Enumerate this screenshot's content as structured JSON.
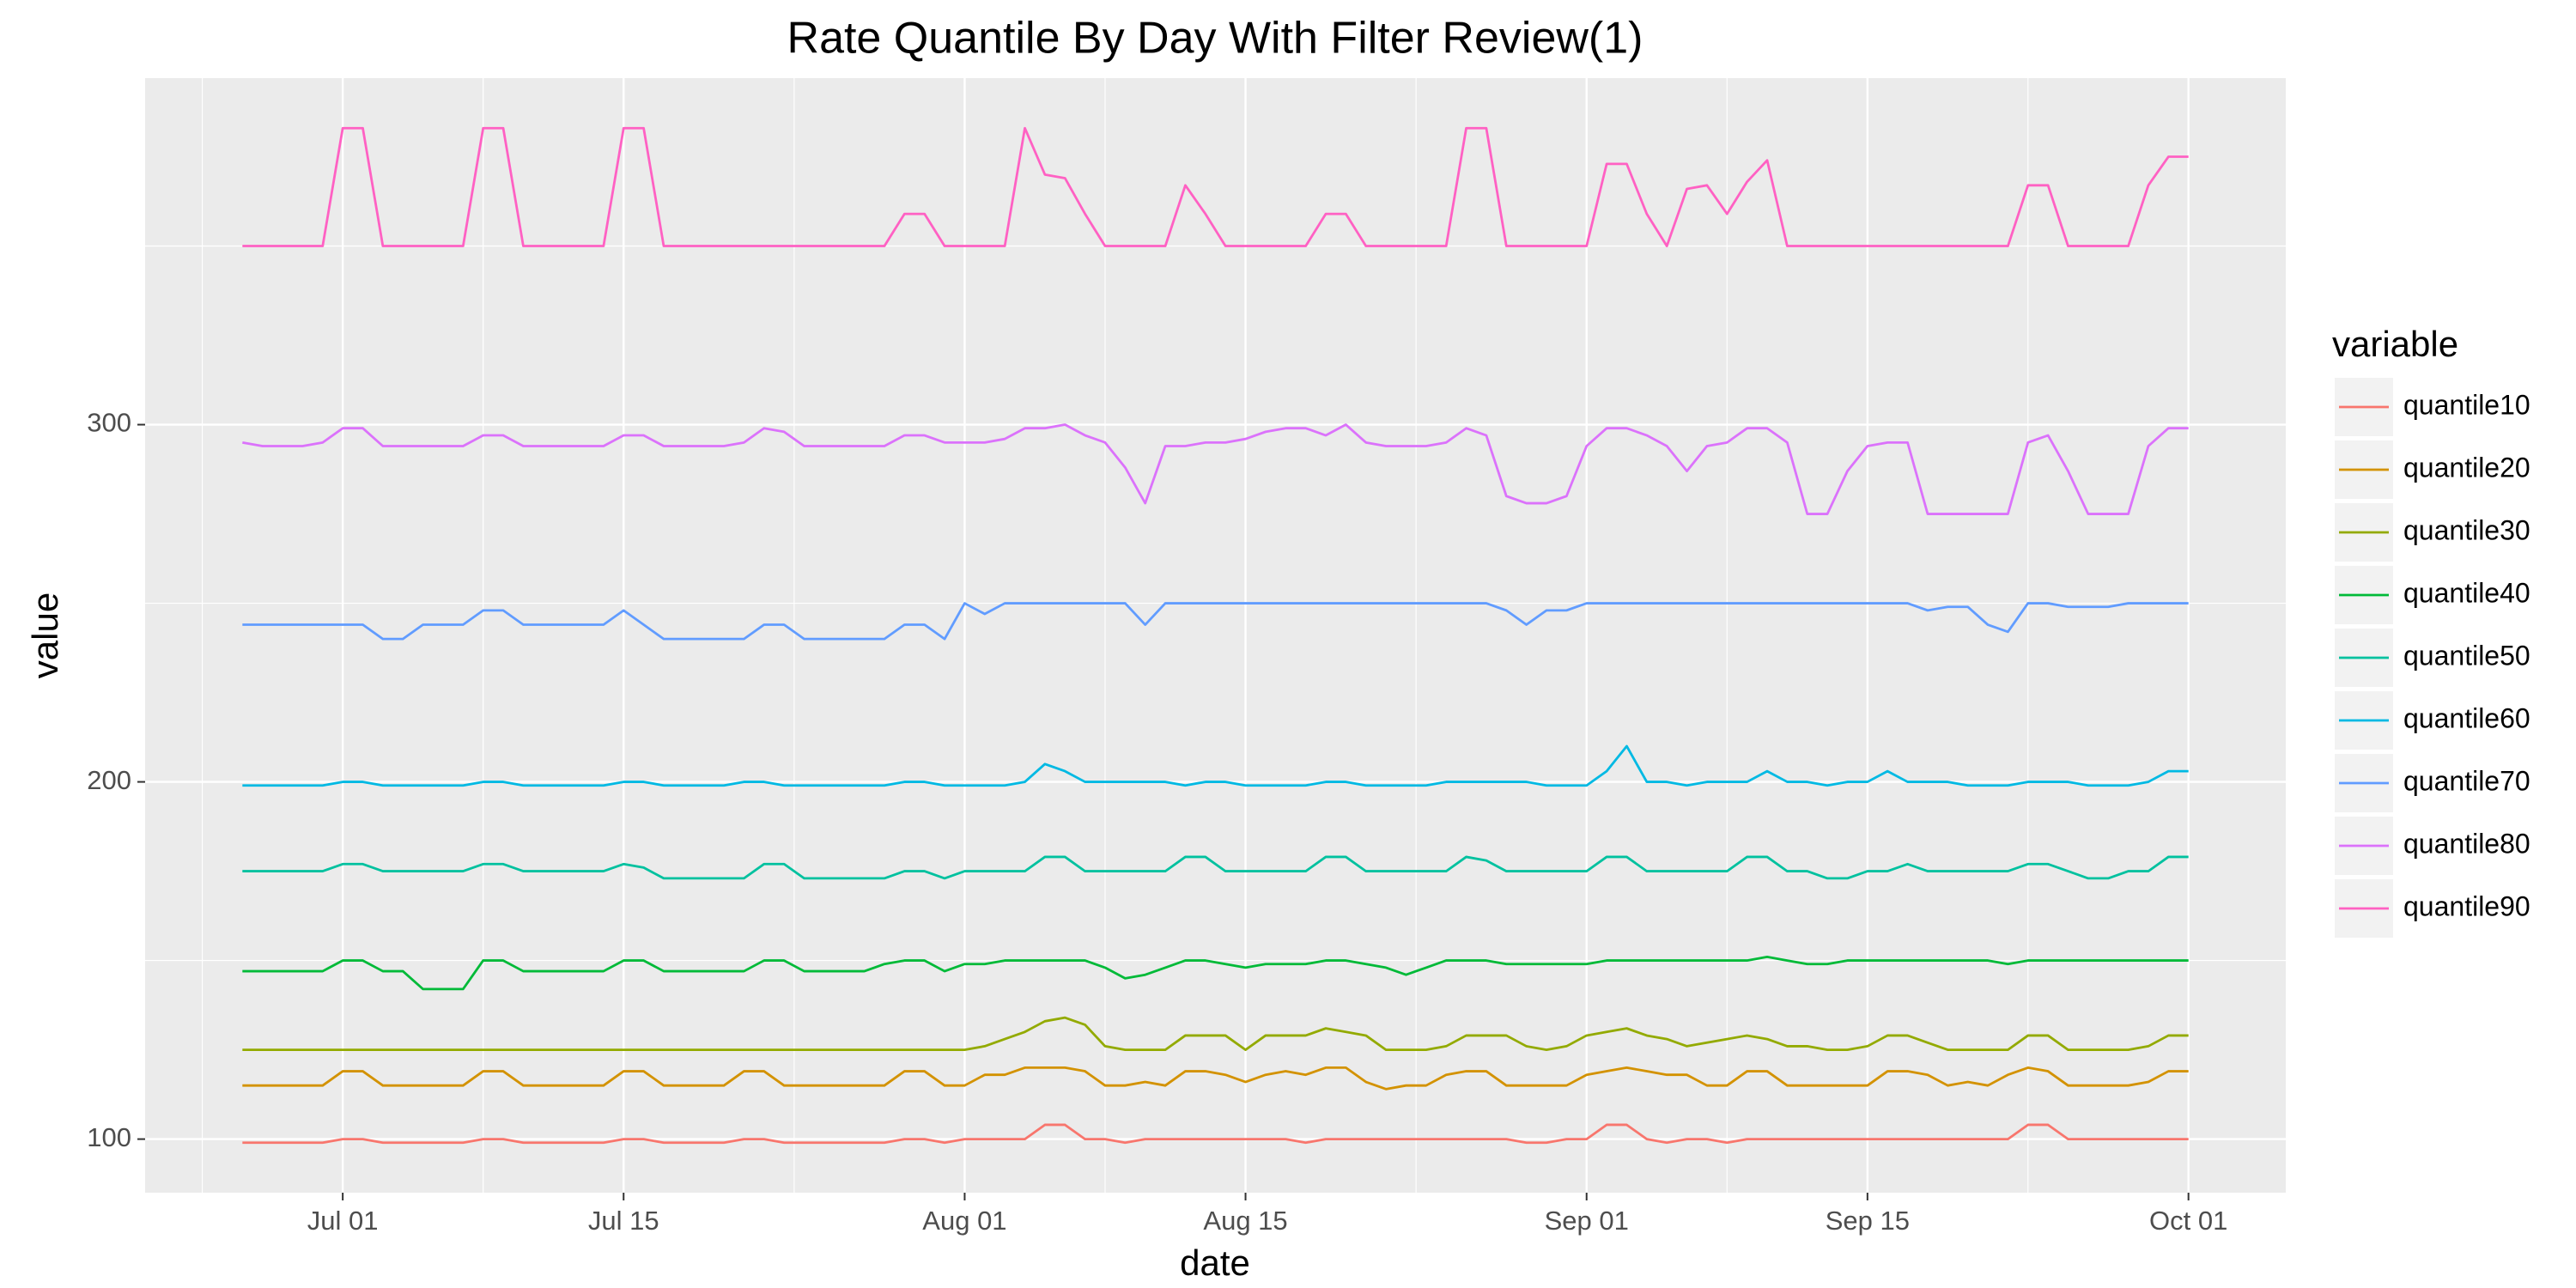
{
  "chart_data": {
    "type": "line",
    "title": "Rate Quantile By Day With Filter Review(1)",
    "x_label": "date",
    "y_label": "value",
    "legend_title": "variable",
    "legend_position": "right",
    "grid": true,
    "x": [
      "Jun 26",
      "Jun 27",
      "Jun 28",
      "Jun 29",
      "Jun 30",
      "Jul 01",
      "Jul 02",
      "Jul 03",
      "Jul 04",
      "Jul 05",
      "Jul 06",
      "Jul 07",
      "Jul 08",
      "Jul 09",
      "Jul 10",
      "Jul 11",
      "Jul 12",
      "Jul 13",
      "Jul 14",
      "Jul 15",
      "Jul 16",
      "Jul 17",
      "Jul 18",
      "Jul 19",
      "Jul 20",
      "Jul 21",
      "Jul 22",
      "Jul 23",
      "Jul 24",
      "Jul 25",
      "Jul 26",
      "Jul 27",
      "Jul 28",
      "Jul 29",
      "Jul 30",
      "Jul 31",
      "Aug 01",
      "Aug 02",
      "Aug 03",
      "Aug 04",
      "Aug 05",
      "Aug 06",
      "Aug 07",
      "Aug 08",
      "Aug 09",
      "Aug 10",
      "Aug 11",
      "Aug 12",
      "Aug 13",
      "Aug 14",
      "Aug 15",
      "Aug 16",
      "Aug 17",
      "Aug 18",
      "Aug 19",
      "Aug 20",
      "Aug 21",
      "Aug 22",
      "Aug 23",
      "Aug 24",
      "Aug 25",
      "Aug 26",
      "Aug 27",
      "Aug 28",
      "Aug 29",
      "Aug 30",
      "Aug 31",
      "Sep 01",
      "Sep 02",
      "Sep 03",
      "Sep 04",
      "Sep 05",
      "Sep 06",
      "Sep 07",
      "Sep 08",
      "Sep 09",
      "Sep 10",
      "Sep 11",
      "Sep 12",
      "Sep 13",
      "Sep 14",
      "Sep 15",
      "Sep 16",
      "Sep 17",
      "Sep 18",
      "Sep 19",
      "Sep 20",
      "Sep 21",
      "Sep 22",
      "Sep 23",
      "Sep 24",
      "Sep 25",
      "Sep 26",
      "Sep 27",
      "Sep 28",
      "Sep 29",
      "Sep 30",
      "Oct 01"
    ],
    "xticks": [
      "Jul 01",
      "Jul 15",
      "Aug 01",
      "Aug 15",
      "Sep 01",
      "Sep 15",
      "Oct 01"
    ],
    "ylim": [
      85,
      397
    ],
    "yticks": [
      100,
      200,
      300
    ],
    "series": [
      {
        "name": "quantile10",
        "color": "#F8766D",
        "values": [
          99,
          99,
          99,
          99,
          99,
          100,
          100,
          99,
          99,
          99,
          99,
          99,
          100,
          100,
          99,
          99,
          99,
          99,
          99,
          100,
          100,
          99,
          99,
          99,
          99,
          100,
          100,
          99,
          99,
          99,
          99,
          99,
          99,
          100,
          100,
          99,
          100,
          100,
          100,
          100,
          104,
          104,
          100,
          100,
          99,
          100,
          100,
          100,
          100,
          100,
          100,
          100,
          100,
          99,
          100,
          100,
          100,
          100,
          100,
          100,
          100,
          100,
          100,
          100,
          99,
          99,
          100,
          100,
          104,
          104,
          100,
          99,
          100,
          100,
          99,
          100,
          100,
          100,
          100,
          100,
          100,
          100,
          100,
          100,
          100,
          100,
          100,
          100,
          100,
          104,
          104,
          100,
          100,
          100,
          100,
          100,
          100,
          100
        ]
      },
      {
        "name": "quantile20",
        "color": "#D39200",
        "values": [
          115,
          115,
          115,
          115,
          115,
          119,
          119,
          115,
          115,
          115,
          115,
          115,
          119,
          119,
          115,
          115,
          115,
          115,
          115,
          119,
          119,
          115,
          115,
          115,
          115,
          119,
          119,
          115,
          115,
          115,
          115,
          115,
          115,
          119,
          119,
          115,
          115,
          118,
          118,
          120,
          120,
          120,
          119,
          115,
          115,
          116,
          115,
          119,
          119,
          118,
          116,
          118,
          119,
          118,
          120,
          120,
          116,
          114,
          115,
          115,
          118,
          119,
          119,
          115,
          115,
          115,
          115,
          118,
          119,
          120,
          119,
          118,
          118,
          115,
          115,
          119,
          119,
          115,
          115,
          115,
          115,
          115,
          119,
          119,
          118,
          115,
          116,
          115,
          118,
          120,
          119,
          115,
          115,
          115,
          115,
          116,
          119,
          119
        ]
      },
      {
        "name": "quantile30",
        "color": "#93AA00",
        "values": [
          125,
          125,
          125,
          125,
          125,
          125,
          125,
          125,
          125,
          125,
          125,
          125,
          125,
          125,
          125,
          125,
          125,
          125,
          125,
          125,
          125,
          125,
          125,
          125,
          125,
          125,
          125,
          125,
          125,
          125,
          125,
          125,
          125,
          125,
          125,
          125,
          125,
          126,
          128,
          130,
          133,
          134,
          132,
          126,
          125,
          125,
          125,
          129,
          129,
          129,
          125,
          129,
          129,
          129,
          131,
          130,
          129,
          125,
          125,
          125,
          126,
          129,
          129,
          129,
          126,
          125,
          126,
          129,
          130,
          131,
          129,
          128,
          126,
          127,
          128,
          129,
          128,
          126,
          126,
          125,
          125,
          126,
          129,
          129,
          127,
          125,
          125,
          125,
          125,
          129,
          129,
          125,
          125,
          125,
          125,
          126,
          129,
          129
        ]
      },
      {
        "name": "quantile40",
        "color": "#00BA38",
        "values": [
          147,
          147,
          147,
          147,
          147,
          150,
          150,
          147,
          147,
          142,
          142,
          142,
          150,
          150,
          147,
          147,
          147,
          147,
          147,
          150,
          150,
          147,
          147,
          147,
          147,
          147,
          150,
          150,
          147,
          147,
          147,
          147,
          149,
          150,
          150,
          147,
          149,
          149,
          150,
          150,
          150,
          150,
          150,
          148,
          145,
          146,
          148,
          150,
          150,
          149,
          148,
          149,
          149,
          149,
          150,
          150,
          149,
          148,
          146,
          148,
          150,
          150,
          150,
          149,
          149,
          149,
          149,
          149,
          150,
          150,
          150,
          150,
          150,
          150,
          150,
          150,
          151,
          150,
          149,
          149,
          150,
          150,
          150,
          150,
          150,
          150,
          150,
          150,
          149,
          150,
          150,
          150,
          150,
          150,
          150,
          150,
          150,
          150
        ]
      },
      {
        "name": "quantile50",
        "color": "#00C19F",
        "values": [
          175,
          175,
          175,
          175,
          175,
          177,
          177,
          175,
          175,
          175,
          175,
          175,
          177,
          177,
          175,
          175,
          175,
          175,
          175,
          177,
          176,
          173,
          173,
          173,
          173,
          173,
          177,
          177,
          173,
          173,
          173,
          173,
          173,
          175,
          175,
          173,
          175,
          175,
          175,
          175,
          179,
          179,
          175,
          175,
          175,
          175,
          175,
          179,
          179,
          175,
          175,
          175,
          175,
          175,
          179,
          179,
          175,
          175,
          175,
          175,
          175,
          179,
          178,
          175,
          175,
          175,
          175,
          175,
          179,
          179,
          175,
          175,
          175,
          175,
          175,
          179,
          179,
          175,
          175,
          173,
          173,
          175,
          175,
          177,
          175,
          175,
          175,
          175,
          175,
          177,
          177,
          175,
          173,
          173,
          175,
          175,
          179,
          179
        ]
      },
      {
        "name": "quantile60",
        "color": "#00B9E3",
        "values": [
          199,
          199,
          199,
          199,
          199,
          200,
          200,
          199,
          199,
          199,
          199,
          199,
          200,
          200,
          199,
          199,
          199,
          199,
          199,
          200,
          200,
          199,
          199,
          199,
          199,
          200,
          200,
          199,
          199,
          199,
          199,
          199,
          199,
          200,
          200,
          199,
          199,
          199,
          199,
          200,
          205,
          203,
          200,
          200,
          200,
          200,
          200,
          199,
          200,
          200,
          199,
          199,
          199,
          199,
          200,
          200,
          199,
          199,
          199,
          199,
          200,
          200,
          200,
          200,
          200,
          199,
          199,
          199,
          203,
          210,
          200,
          200,
          199,
          200,
          200,
          200,
          203,
          200,
          200,
          199,
          200,
          200,
          203,
          200,
          200,
          200,
          199,
          199,
          199,
          200,
          200,
          200,
          199,
          199,
          199,
          200,
          203,
          203
        ]
      },
      {
        "name": "quantile70",
        "color": "#619CFF",
        "values": [
          244,
          244,
          244,
          244,
          244,
          244,
          244,
          240,
          240,
          244,
          244,
          244,
          248,
          248,
          244,
          244,
          244,
          244,
          244,
          248,
          244,
          240,
          240,
          240,
          240,
          240,
          244,
          244,
          240,
          240,
          240,
          240,
          240,
          244,
          244,
          240,
          250,
          247,
          250,
          250,
          250,
          250,
          250,
          250,
          250,
          244,
          250,
          250,
          250,
          250,
          250,
          250,
          250,
          250,
          250,
          250,
          250,
          250,
          250,
          250,
          250,
          250,
          250,
          248,
          244,
          248,
          248,
          250,
          250,
          250,
          250,
          250,
          250,
          250,
          250,
          250,
          250,
          250,
          250,
          250,
          250,
          250,
          250,
          250,
          248,
          249,
          249,
          244,
          242,
          250,
          250,
          249,
          249,
          249,
          250,
          250,
          250,
          250
        ]
      },
      {
        "name": "quantile80",
        "color": "#DB72FB",
        "values": [
          295,
          294,
          294,
          294,
          295,
          299,
          299,
          294,
          294,
          294,
          294,
          294,
          297,
          297,
          294,
          294,
          294,
          294,
          294,
          297,
          297,
          294,
          294,
          294,
          294,
          295,
          299,
          298,
          294,
          294,
          294,
          294,
          294,
          297,
          297,
          295,
          295,
          295,
          296,
          299,
          299,
          300,
          297,
          295,
          288,
          278,
          294,
          294,
          295,
          295,
          296,
          298,
          299,
          299,
          297,
          300,
          295,
          294,
          294,
          294,
          295,
          299,
          297,
          280,
          278,
          278,
          280,
          294,
          299,
          299,
          297,
          294,
          287,
          294,
          295,
          299,
          299,
          295,
          275,
          275,
          287,
          294,
          295,
          295,
          275,
          275,
          275,
          275,
          275,
          295,
          297,
          287,
          275,
          275,
          275,
          294,
          299,
          299
        ]
      },
      {
        "name": "quantile90",
        "color": "#FF61C3",
        "values": [
          350,
          350,
          350,
          350,
          350,
          383,
          383,
          350,
          350,
          350,
          350,
          350,
          383,
          383,
          350,
          350,
          350,
          350,
          350,
          383,
          383,
          350,
          350,
          350,
          350,
          350,
          350,
          350,
          350,
          350,
          350,
          350,
          350,
          359,
          359,
          350,
          350,
          350,
          350,
          383,
          370,
          369,
          359,
          350,
          350,
          350,
          350,
          367,
          359,
          350,
          350,
          350,
          350,
          350,
          359,
          359,
          350,
          350,
          350,
          350,
          350,
          383,
          383,
          350,
          350,
          350,
          350,
          350,
          373,
          373,
          359,
          350,
          366,
          367,
          359,
          368,
          374,
          350,
          350,
          350,
          350,
          350,
          350,
          350,
          350,
          350,
          350,
          350,
          350,
          367,
          367,
          350,
          350,
          350,
          350,
          367,
          375,
          375
        ]
      }
    ]
  }
}
